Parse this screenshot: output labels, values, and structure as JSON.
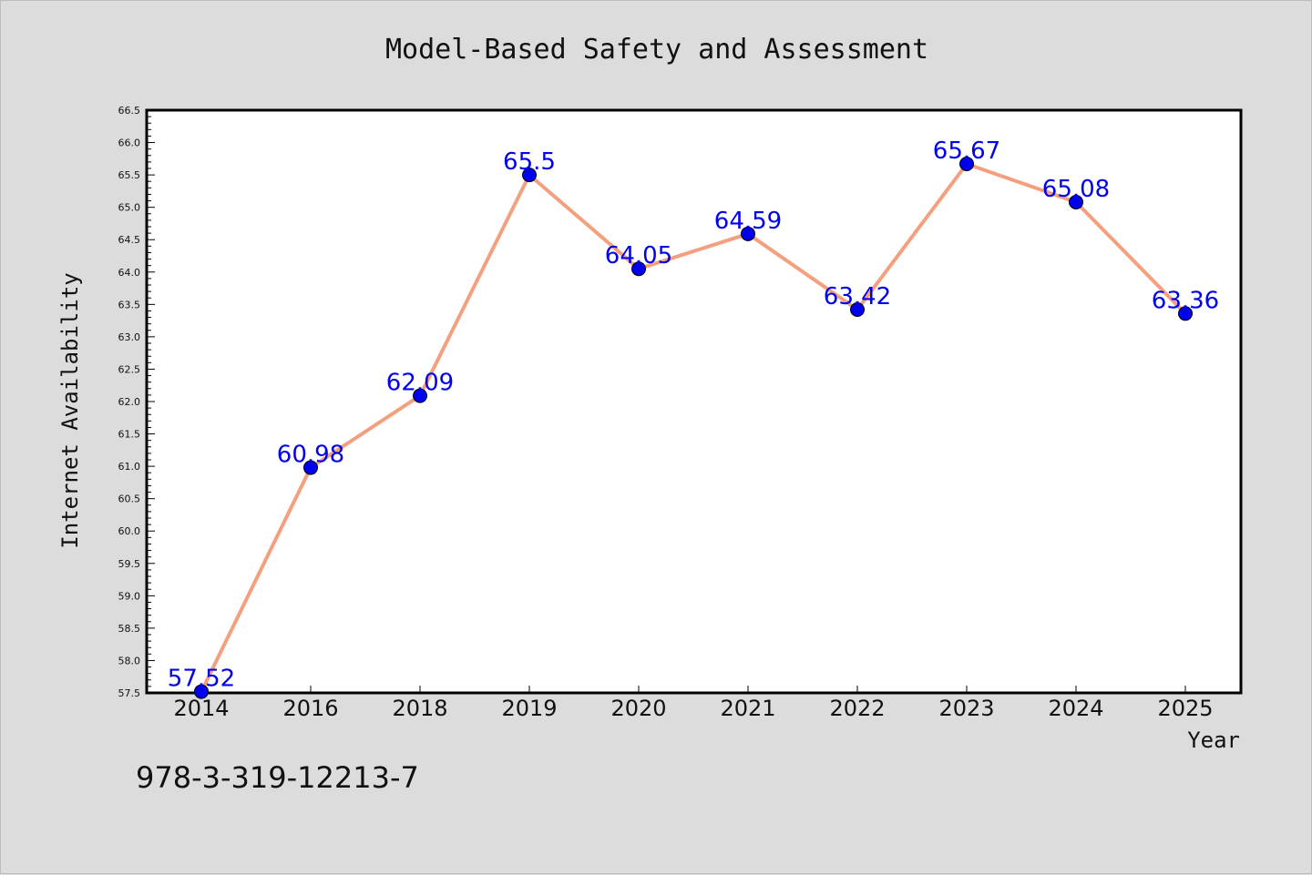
{
  "chart_data": {
    "type": "line",
    "title": "Model-Based Safety and Assessment",
    "xlabel": "Year",
    "ylabel": "Internet Availability",
    "categories": [
      "2014",
      "2016",
      "2018",
      "2019",
      "2020",
      "2021",
      "2022",
      "2023",
      "2024",
      "2025"
    ],
    "values": [
      57.52,
      60.98,
      62.09,
      65.5,
      64.05,
      64.59,
      63.42,
      65.67,
      65.08,
      63.36
    ],
    "data_labels": [
      "57.52",
      "60.98",
      "62.09",
      "65.5",
      "64.05",
      "64.59",
      "63.42",
      "65.67",
      "65.08",
      "63.36"
    ],
    "ylim": [
      57.5,
      66.5
    ],
    "yticks": [
      "57.5",
      "58.0",
      "58.5",
      "59.0",
      "59.5",
      "60.0",
      "60.5",
      "61.0",
      "61.5",
      "62.0",
      "62.5",
      "63.0",
      "63.5",
      "64.0",
      "64.5",
      "65.0",
      "65.5",
      "66.0",
      "66.5"
    ],
    "grid": false,
    "line_color": "#f4a07e",
    "marker_color": "#0000ee",
    "label_color": "#0000ee",
    "plot_background": "#ffffff",
    "figure_background": "#dcdcdc"
  },
  "caption": "978-3-319-12213-7"
}
